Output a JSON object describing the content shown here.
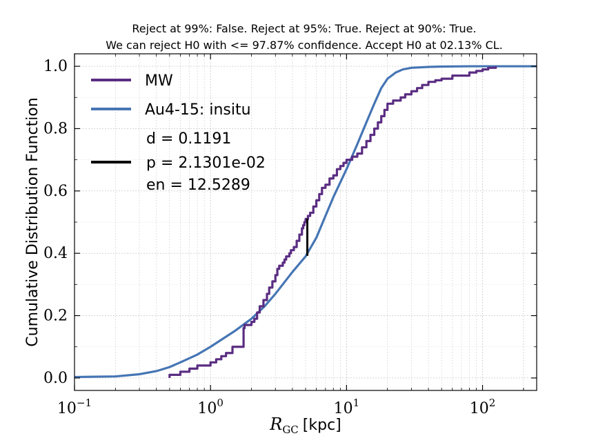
{
  "chart_data": {
    "type": "line",
    "title_lines": [
      "Reject at 99%: False. Reject at 95%: True. Reject at 90%: True.",
      "We can reject H0 with <= 97.87% confidence. Accept H0 at 02.13% CL."
    ],
    "xlabel_main": "R",
    "xlabel_sub": "GC",
    "xlabel_unit": "[kpc]",
    "ylabel": "Cumulative Distribution Function",
    "xscale": "log",
    "xlim": [
      0.1,
      250
    ],
    "ylim": [
      -0.04,
      1.04
    ],
    "xticks": [
      {
        "value": 0.1,
        "base": "10",
        "exp": "−1"
      },
      {
        "value": 1,
        "base": "10",
        "exp": "0"
      },
      {
        "value": 10,
        "base": "10",
        "exp": "1"
      },
      {
        "value": 100,
        "base": "10",
        "exp": "2"
      }
    ],
    "yticks": [
      {
        "value": 0.0,
        "label": "0.0"
      },
      {
        "value": 0.2,
        "label": "0.2"
      },
      {
        "value": 0.4,
        "label": "0.4"
      },
      {
        "value": 0.6,
        "label": "0.6"
      },
      {
        "value": 0.8,
        "label": "0.8"
      },
      {
        "value": 1.0,
        "label": "1.0"
      }
    ],
    "grid": true,
    "legend_position": "upper-left",
    "series": [
      {
        "name": "MW",
        "color": "#5a2d82",
        "step": true,
        "x": [
          0.5,
          0.6,
          0.7,
          0.8,
          1.0,
          1.1,
          1.2,
          1.3,
          1.45,
          1.75,
          1.78,
          2.0,
          2.1,
          2.2,
          2.3,
          2.45,
          2.6,
          2.7,
          2.85,
          3.0,
          3.1,
          3.2,
          3.4,
          3.5,
          3.6,
          3.8,
          3.9,
          4.1,
          4.3,
          4.5,
          4.7,
          4.8,
          4.9,
          5.0,
          5.2,
          5.4,
          5.7,
          6.0,
          6.3,
          6.6,
          7.0,
          7.5,
          8.0,
          8.5,
          9.0,
          9.5,
          10.0,
          11.0,
          12.0,
          13.0,
          14.0,
          15.0,
          16.0,
          17.0,
          18.0,
          19.0,
          20.0,
          22.0,
          25.0,
          27.0,
          30.0,
          33.0,
          36.0,
          40.0,
          45.0,
          50.0,
          55.0,
          60.0,
          70.0,
          80.0,
          90.0,
          100.0,
          110.0,
          125.0
        ],
        "y": [
          0.01,
          0.02,
          0.03,
          0.04,
          0.05,
          0.06,
          0.07,
          0.08,
          0.1,
          0.16,
          0.17,
          0.18,
          0.19,
          0.21,
          0.23,
          0.25,
          0.27,
          0.29,
          0.31,
          0.33,
          0.35,
          0.36,
          0.37,
          0.38,
          0.39,
          0.4,
          0.41,
          0.42,
          0.44,
          0.46,
          0.48,
          0.49,
          0.5,
          0.51,
          0.52,
          0.53,
          0.55,
          0.57,
          0.59,
          0.61,
          0.62,
          0.64,
          0.65,
          0.67,
          0.68,
          0.69,
          0.7,
          0.71,
          0.72,
          0.74,
          0.76,
          0.78,
          0.8,
          0.82,
          0.84,
          0.86,
          0.88,
          0.89,
          0.9,
          0.91,
          0.92,
          0.93,
          0.94,
          0.95,
          0.955,
          0.96,
          0.96,
          0.97,
          0.97,
          0.98,
          0.985,
          0.99,
          0.995,
          1.0
        ]
      },
      {
        "name": "Au4-15: insitu",
        "color": "#4575b4",
        "step": false,
        "x": [
          0.1,
          0.2,
          0.3,
          0.4,
          0.5,
          0.6,
          0.8,
          1.0,
          1.5,
          2.0,
          2.5,
          3.0,
          4.0,
          5.0,
          6.0,
          7.0,
          8.0,
          10.0,
          12.0,
          14.0,
          16.0,
          18.0,
          20.0,
          23.0,
          26.0,
          30.0,
          40.0,
          50.0,
          80.0,
          100.0,
          250.0
        ],
        "y": [
          0.003,
          0.005,
          0.012,
          0.022,
          0.035,
          0.05,
          0.075,
          0.1,
          0.15,
          0.19,
          0.23,
          0.27,
          0.34,
          0.39,
          0.45,
          0.52,
          0.58,
          0.67,
          0.75,
          0.82,
          0.88,
          0.93,
          0.96,
          0.98,
          0.99,
          0.995,
          0.998,
          0.999,
          1.0,
          1.0,
          1.0
        ]
      }
    ],
    "ks_line": {
      "x": 5.15,
      "y1": 0.392,
      "y2": 0.511,
      "color": "#000000"
    },
    "legend_entries": [
      {
        "label": "MW",
        "color": "#5a2d82"
      },
      {
        "label": "Au4-15: insitu",
        "color": "#4575b4"
      }
    ],
    "legend_stats": [
      "d = 0.1191",
      "p = 2.1301e-02",
      "en = 12.5289"
    ]
  }
}
